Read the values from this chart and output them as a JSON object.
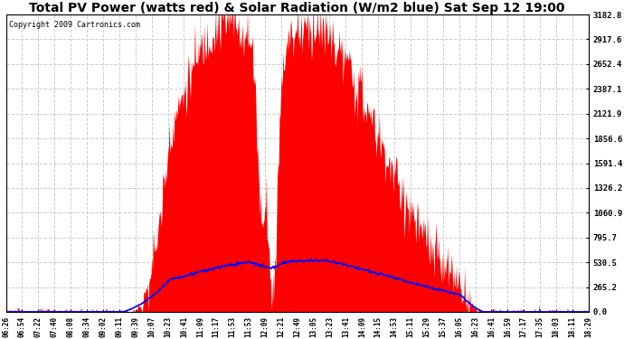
{
  "title": "Total PV Power (watts red) & Solar Radiation (W/m2 blue) Sat Sep 12 19:00",
  "copyright": "Copyright 2009 Cartronics.com",
  "y_max": 3182.8,
  "y_ticks": [
    0.0,
    265.2,
    530.5,
    795.7,
    1060.9,
    1326.2,
    1591.4,
    1856.6,
    2121.9,
    2387.1,
    2652.4,
    2917.6,
    3182.8
  ],
  "x_labels": [
    "06:26",
    "06:54",
    "07:22",
    "07:40",
    "08:08",
    "08:34",
    "09:02",
    "09:11",
    "09:39",
    "10:07",
    "10:23",
    "10:41",
    "11:09",
    "11:17",
    "11:53",
    "11:53",
    "12:09",
    "12:21",
    "12:49",
    "13:05",
    "13:23",
    "13:41",
    "14:09",
    "14:15",
    "14:53",
    "15:11",
    "15:29",
    "15:37",
    "16:05",
    "16:23",
    "16:41",
    "16:59",
    "17:17",
    "17:35",
    "18:03",
    "18:11",
    "18:29"
  ],
  "pv_color": "#FF0000",
  "solar_color": "#0000FF",
  "bg_color": "#FFFFFF",
  "grid_color": "#CCCCCC",
  "title_fontsize": 10,
  "copyright_fontsize": 6,
  "figwidth": 6.9,
  "figheight": 3.75,
  "dpi": 100
}
